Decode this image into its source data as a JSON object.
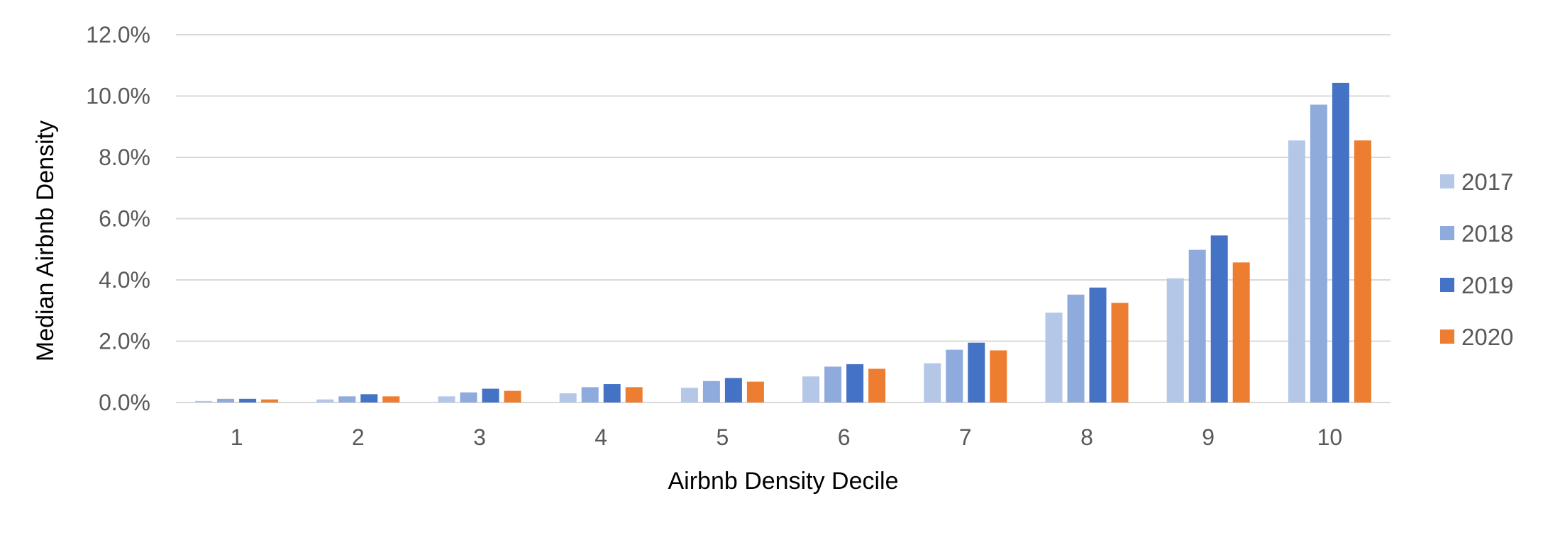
{
  "chart_data": {
    "type": "bar",
    "title": "",
    "xlabel": "Airbnb Density Decile",
    "ylabel": "Median Airbnb Density",
    "categories": [
      "1",
      "2",
      "3",
      "4",
      "5",
      "6",
      "7",
      "8",
      "9",
      "10"
    ],
    "series": [
      {
        "name": "2017",
        "color": "#b4c7e7",
        "values": [
          0.05,
          0.1,
          0.2,
          0.3,
          0.48,
          0.85,
          1.28,
          2.93,
          4.05,
          8.55
        ]
      },
      {
        "name": "2018",
        "color": "#8faadc",
        "values": [
          0.12,
          0.2,
          0.33,
          0.5,
          0.7,
          1.17,
          1.72,
          3.52,
          4.98,
          9.72
        ]
      },
      {
        "name": "2019",
        "color": "#4472c4",
        "values": [
          0.12,
          0.27,
          0.45,
          0.6,
          0.8,
          1.25,
          1.95,
          3.75,
          5.45,
          10.43
        ]
      },
      {
        "name": "2020",
        "color": "#ed7d31",
        "values": [
          0.1,
          0.2,
          0.38,
          0.5,
          0.68,
          1.1,
          1.7,
          3.25,
          4.57,
          8.55
        ]
      }
    ],
    "ylim": [
      0,
      12
    ],
    "yticks": [
      0,
      2,
      4,
      6,
      8,
      10,
      12
    ],
    "ytick_labels": [
      "0.0%",
      "2.0%",
      "4.0%",
      "6.0%",
      "8.0%",
      "10.0%",
      "12.0%"
    ],
    "unit": "%",
    "grid": true,
    "legend_position": "right"
  }
}
